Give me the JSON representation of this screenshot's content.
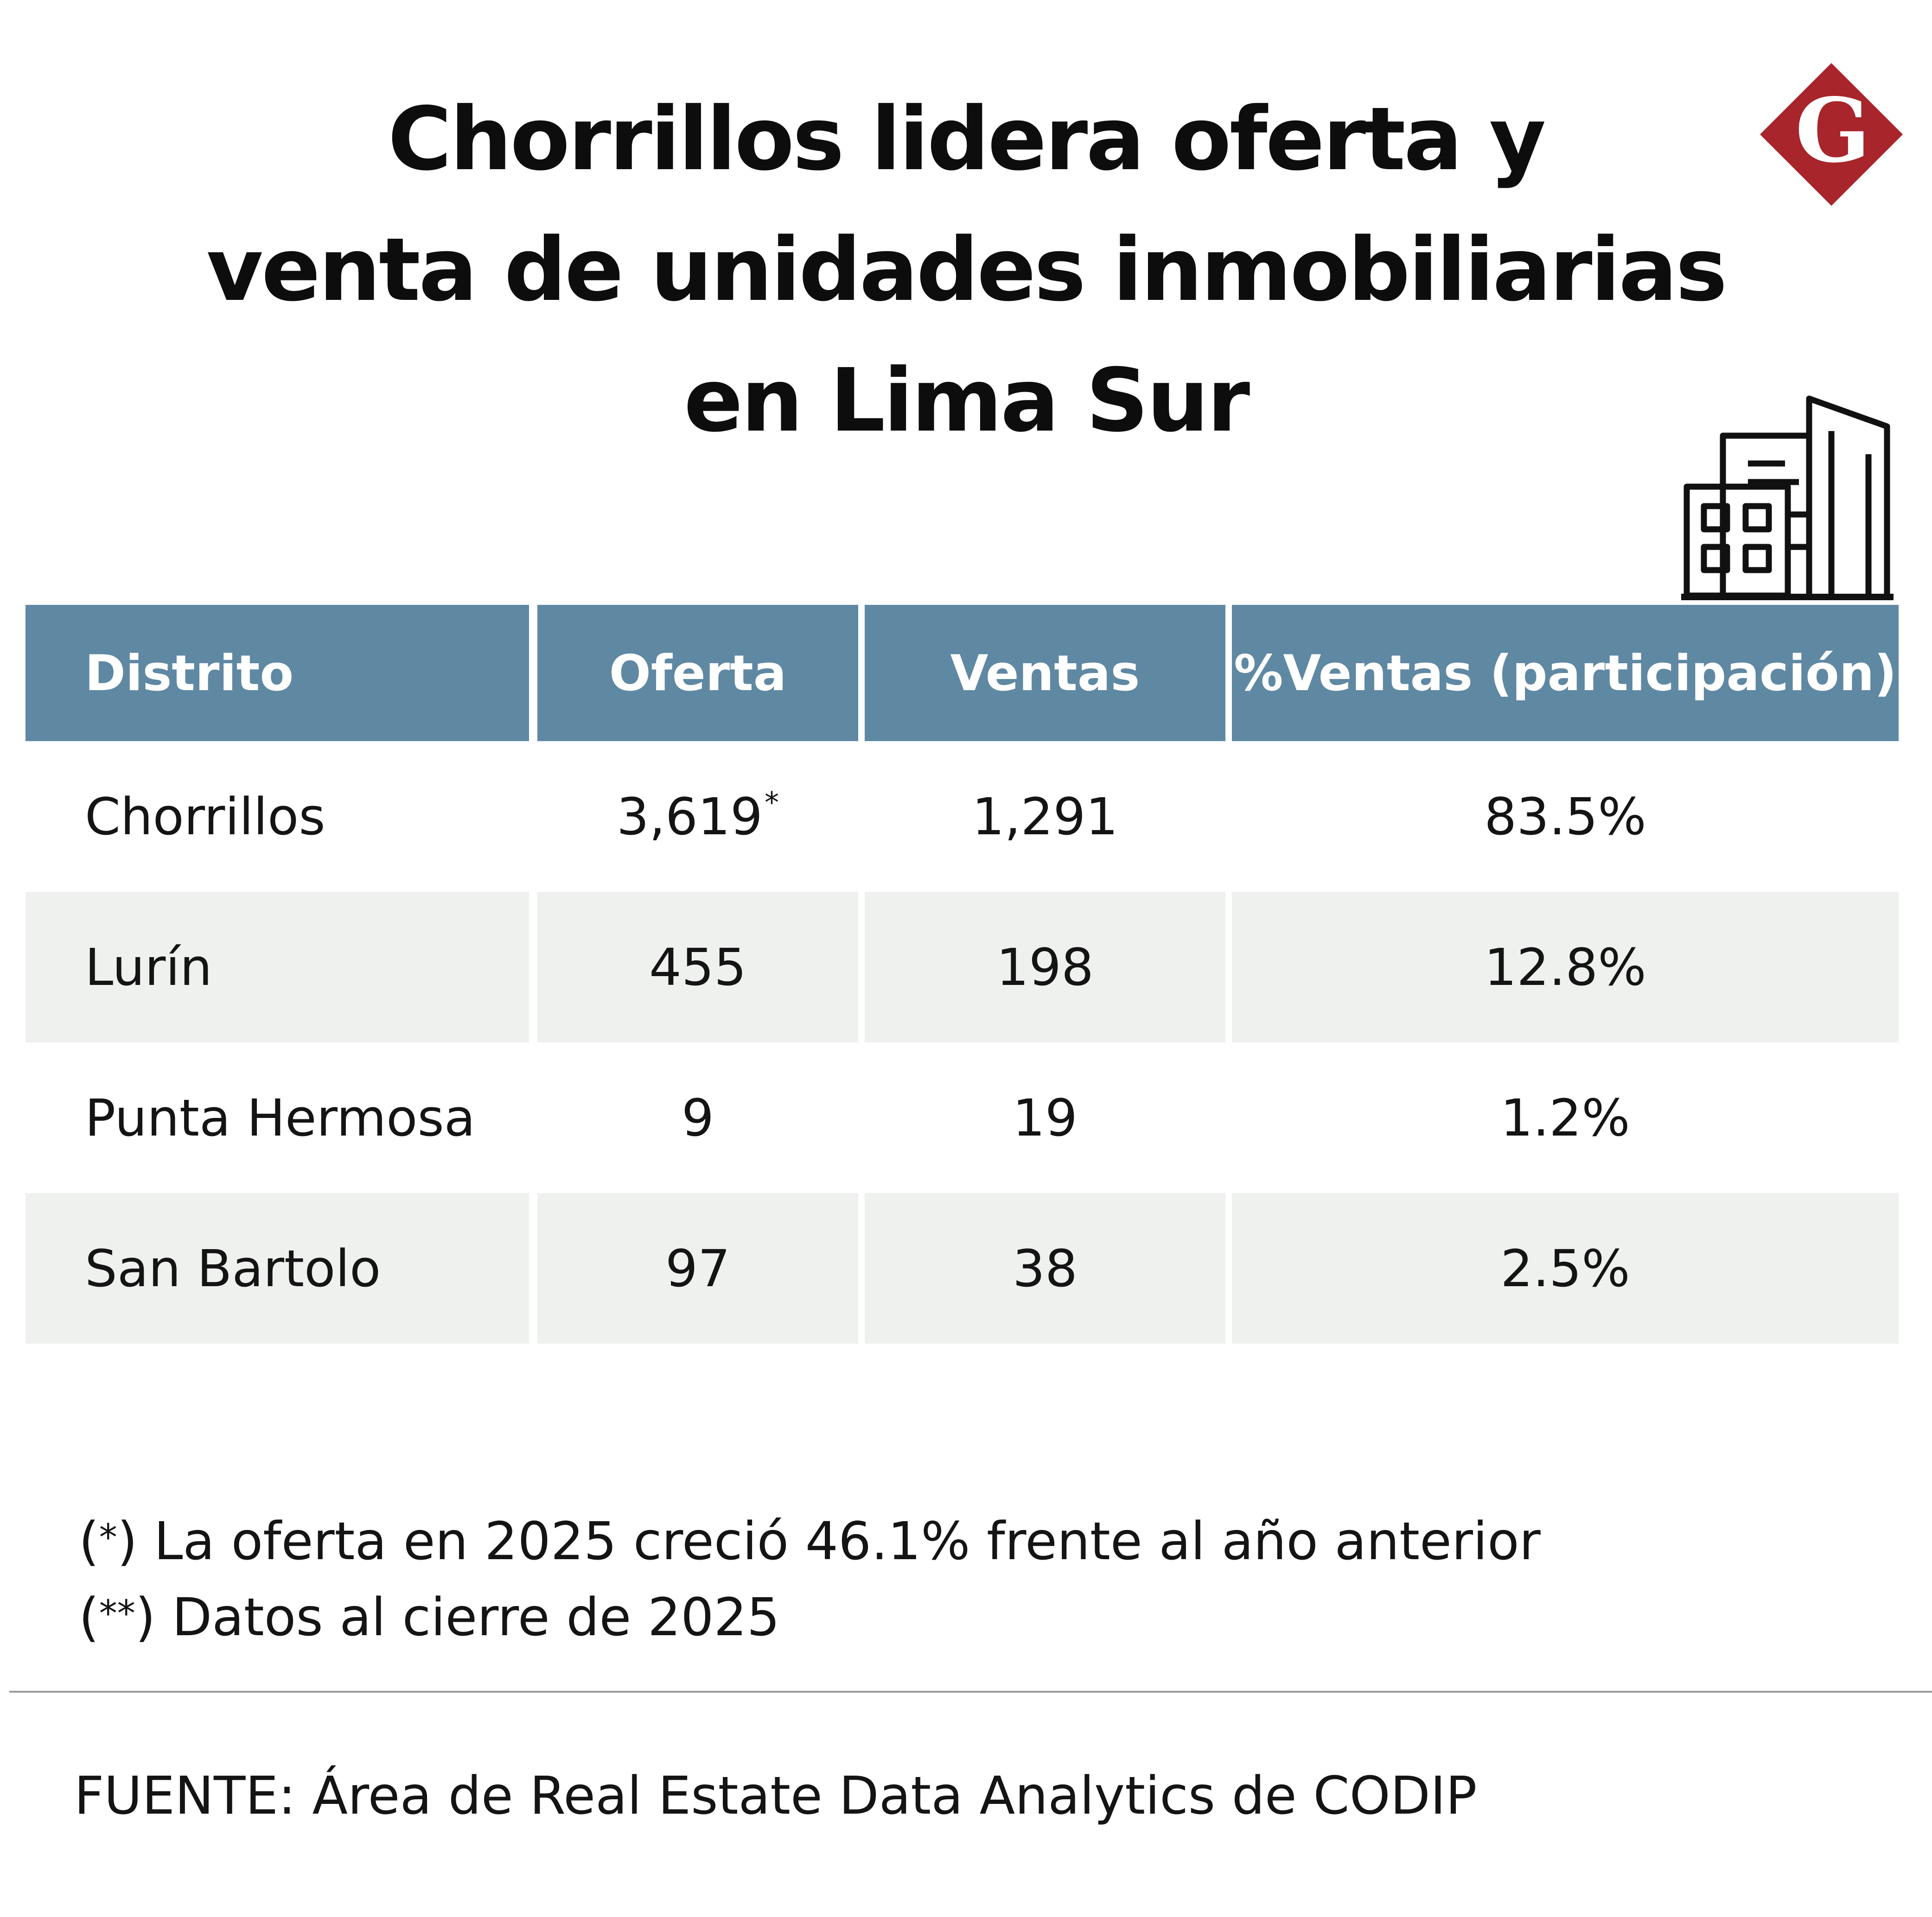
{
  "title": {
    "line1": "Chorrillos lidera oferta y",
    "line2": "venta de unidades inmobiliarias",
    "line3": "en Lima Sur"
  },
  "logo": {
    "letter": "G",
    "icon": "gestion-logo-icon",
    "color": "#a8252b"
  },
  "building_icon": "building-icon",
  "chart_data": {
    "type": "table",
    "columns": [
      "Distrito",
      "Oferta",
      "Ventas",
      "%Ventas (participación)"
    ],
    "rows": [
      {
        "distrito": "Chorrillos",
        "oferta": "3,619",
        "oferta_mark": "*",
        "ventas": "1,291",
        "pct": "83.5%"
      },
      {
        "distrito": "Lurín",
        "oferta": "455",
        "oferta_mark": "",
        "ventas": "198",
        "pct": "12.8%"
      },
      {
        "distrito": "Punta Hermosa",
        "oferta": "9",
        "oferta_mark": "",
        "ventas": "19",
        "pct": "1.2%"
      },
      {
        "distrito": "San Bartolo",
        "oferta": "97",
        "oferta_mark": "",
        "ventas": "38",
        "pct": "2.5%"
      }
    ],
    "header_color": "#5f88a3",
    "shade_color": "#eef1ee"
  },
  "notes": {
    "note1_mark": "*",
    "note1_text": "La oferta en 2025 creció 46.1% frente al año anterior",
    "note2_mark": "**",
    "note2_text": "Datos al cierre de 2025"
  },
  "source": "FUENTE: Área de Real Estate Data Analytics de CODIP"
}
